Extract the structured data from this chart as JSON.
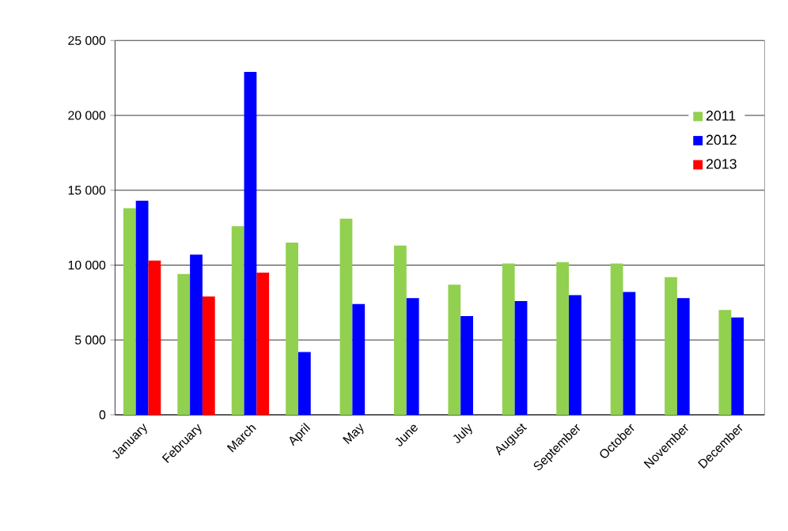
{
  "chart_data": {
    "type": "bar",
    "categories": [
      "January",
      "February",
      "March",
      "April",
      "May",
      "June",
      "July",
      "August",
      "September",
      "October",
      "November",
      "December"
    ],
    "series": [
      {
        "name": "2011",
        "color": "#92d050",
        "values": [
          13800,
          9400,
          12600,
          11500,
          13100,
          11300,
          8700,
          10100,
          10200,
          10100,
          9200,
          7000
        ]
      },
      {
        "name": "2012",
        "color": "#0000ff",
        "values": [
          14300,
          10700,
          22900,
          4200,
          7400,
          7800,
          6600,
          7600,
          8000,
          8200,
          7800,
          6500
        ]
      },
      {
        "name": "2013",
        "color": "#ff0000",
        "values": [
          10300,
          7900,
          9500,
          null,
          null,
          null,
          null,
          null,
          null,
          null,
          null,
          null
        ]
      }
    ],
    "ylim": [
      0,
      25000
    ],
    "yticks": [
      0,
      {
        "value": 5000,
        "label": "5 000"
      },
      {
        "value": 10000,
        "label": "10 000"
      },
      {
        "value": 15000,
        "label": "15 000"
      },
      {
        "value": 20000,
        "label": "20 000"
      },
      {
        "value": 25000,
        "label": "25 000"
      }
    ],
    "grid": "y",
    "legend": "top right"
  }
}
